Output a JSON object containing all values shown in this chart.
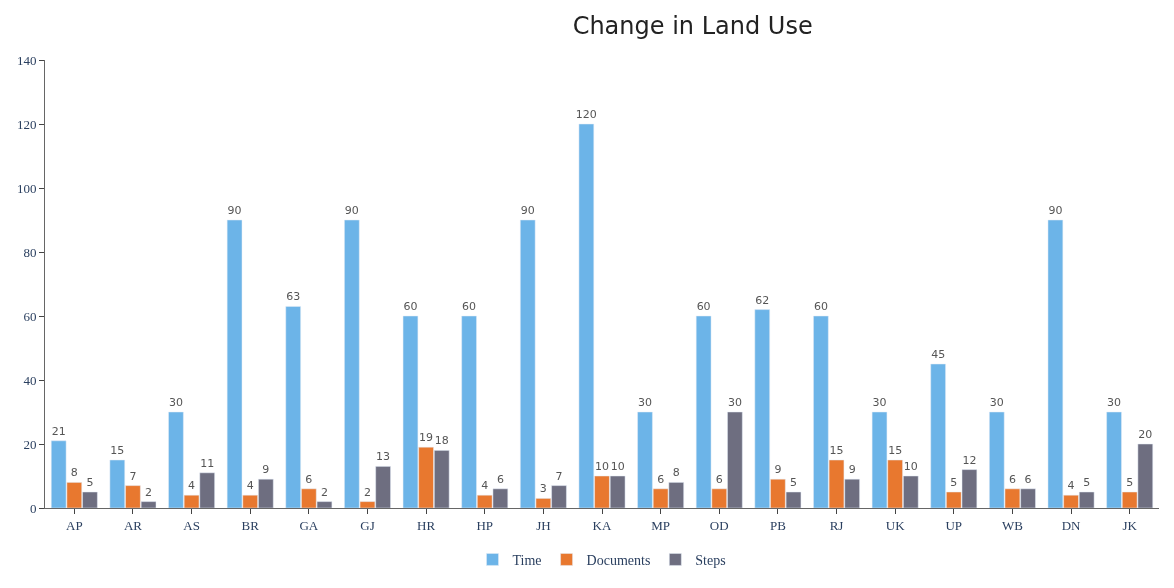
{
  "chart_data": {
    "type": "bar",
    "title": "Change in Land Use",
    "categories": [
      "AP",
      "AR",
      "AS",
      "BR",
      "GA",
      "GJ",
      "HR",
      "HP",
      "JH",
      "KA",
      "MP",
      "OD",
      "PB",
      "RJ",
      "UK",
      "UP",
      "WB",
      "DN",
      "JK"
    ],
    "series": [
      {
        "name": "Time",
        "color": "#6cb4e8",
        "values": [
          21,
          15,
          30,
          90,
          63,
          90,
          60,
          60,
          90,
          120,
          30,
          60,
          62,
          60,
          30,
          45,
          30,
          90,
          30
        ]
      },
      {
        "name": "Documents",
        "color": "#e8782f",
        "values": [
          8,
          7,
          4,
          4,
          6,
          2,
          19,
          4,
          3,
          10,
          6,
          6,
          9,
          15,
          15,
          5,
          6,
          4,
          5
        ]
      },
      {
        "name": "Steps",
        "color": "#6e6e80",
        "values": [
          5,
          2,
          11,
          9,
          2,
          13,
          18,
          6,
          7,
          10,
          8,
          30,
          5,
          9,
          10,
          12,
          6,
          5,
          20
        ]
      }
    ],
    "ylim": [
      0,
      140
    ],
    "yticks": [
      0,
      20,
      40,
      60,
      80,
      100,
      120,
      140
    ],
    "legend": "bottom",
    "data_labels": true
  }
}
